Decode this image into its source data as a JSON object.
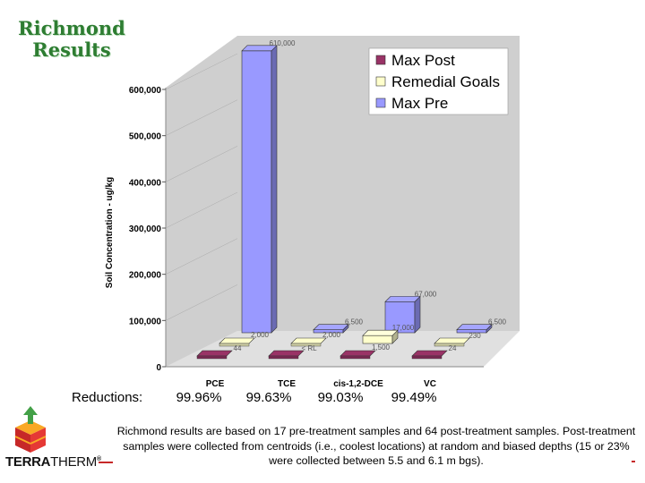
{
  "title": "Richmond Results",
  "chart_data": {
    "type": "bar",
    "subtype": "3d-grouped",
    "categories": [
      "PCE",
      "TCE",
      "cis-1,2-DCE",
      "VC"
    ],
    "ylabel": "Soil Concentration - ug/kg",
    "ylim": [
      0,
      600000
    ],
    "yticks": [
      "0",
      "100,000",
      "200,000",
      "300,000",
      "400,000",
      "500,000",
      "600,000"
    ],
    "legend_position": "top-right",
    "series": [
      {
        "name": "Max Pre",
        "color": "#9999ff",
        "values": [
          610000,
          6500,
          67000,
          6500
        ],
        "labels": [
          "610,000",
          "6,500",
          "67,000",
          "6,500"
        ]
      },
      {
        "name": "Remedial Goals",
        "color": "#ffffcc",
        "values": [
          2000,
          2000,
          17000,
          230
        ],
        "labels": [
          "2,000",
          "2,000",
          "17,000",
          "230"
        ]
      },
      {
        "name": "Max Post",
        "color": "#993366",
        "values": [
          44,
          0,
          1500,
          24
        ],
        "labels": [
          "44",
          "< RL",
          "1,500",
          "24"
        ]
      }
    ],
    "legend_order": [
      "Max Post",
      "Remedial Goals",
      "Max Pre"
    ]
  },
  "reductions": {
    "label": "Reductions:",
    "values": [
      "99.96%",
      "99.63%",
      "99.03%",
      "99.49%"
    ]
  },
  "footnote": "Richmond results are based on 17 pre-treatment samples and 64 post-treatment samples. Post-treatment samples were collected from centroids (i.e., coolest locations) at random and biased depths (15 or 23% were collected between 5.5 and 6.1 m bgs).",
  "logo": {
    "text_bold": "TERRA",
    "text_thin": "THERM",
    "mark": "®"
  },
  "colors": {
    "title": "#2e7d32",
    "floor": "#d9d9d9",
    "wall": "#c0c0c0"
  }
}
